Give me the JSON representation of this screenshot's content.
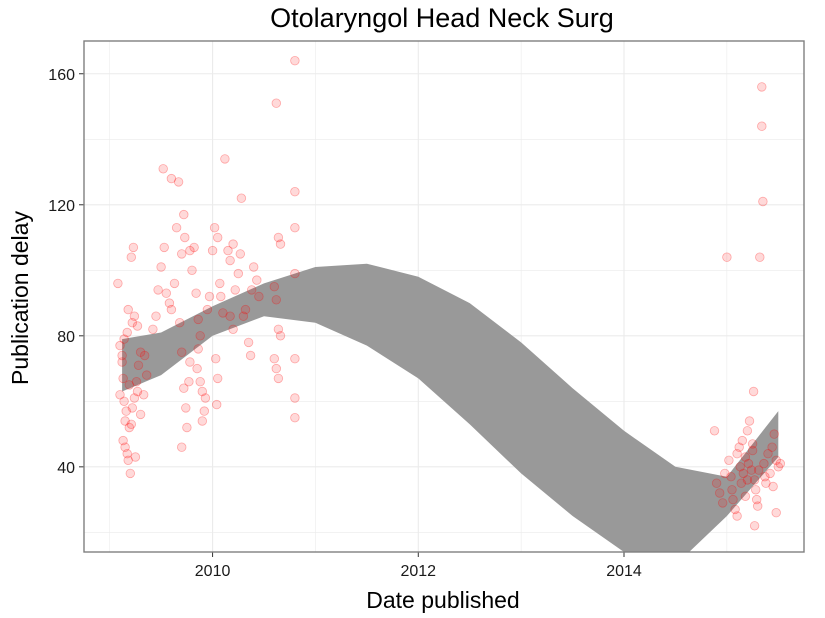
{
  "chart_data": {
    "type": "scatter",
    "title": "Otolaryngol Head Neck Surg",
    "xlabel": "Date published",
    "ylabel": "Publication delay",
    "x_ticks": [
      "2010",
      "2012",
      "2014"
    ],
    "y_ticks": [
      "40",
      "80",
      "120",
      "160"
    ],
    "xlim": [
      2008.75,
      2015.75
    ],
    "ylim": [
      14,
      170
    ],
    "grid": true,
    "colors": {
      "points": "#ff0000",
      "band": "#999999",
      "panel_border": "#7f7f7f",
      "grid": "#ebebeb"
    },
    "points": [
      [
        2009.08,
        96
      ],
      [
        2009.1,
        77
      ],
      [
        2009.12,
        72
      ],
      [
        2009.13,
        67
      ],
      [
        2009.1,
        62
      ],
      [
        2009.14,
        60
      ],
      [
        2009.16,
        57
      ],
      [
        2009.15,
        54
      ],
      [
        2009.13,
        48
      ],
      [
        2009.15,
        46
      ],
      [
        2009.17,
        44
      ],
      [
        2009.18,
        42
      ],
      [
        2009.2,
        38
      ],
      [
        2009.19,
        52
      ],
      [
        2009.21,
        53
      ],
      [
        2009.22,
        58
      ],
      [
        2009.24,
        61
      ],
      [
        2009.12,
        74
      ],
      [
        2009.14,
        79
      ],
      [
        2009.17,
        81
      ],
      [
        2009.18,
        88
      ],
      [
        2009.22,
        84
      ],
      [
        2009.24,
        86
      ],
      [
        2009.27,
        83
      ],
      [
        2009.21,
        104
      ],
      [
        2009.23,
        107
      ],
      [
        2009.19,
        65
      ],
      [
        2009.26,
        66
      ],
      [
        2009.28,
        71
      ],
      [
        2009.3,
        75
      ],
      [
        2009.33,
        62
      ],
      [
        2009.36,
        68
      ],
      [
        2009.25,
        43
      ],
      [
        2009.27,
        63
      ],
      [
        2009.3,
        56
      ],
      [
        2009.34,
        74
      ],
      [
        2009.42,
        82
      ],
      [
        2009.45,
        86
      ],
      [
        2009.47,
        94
      ],
      [
        2009.5,
        101
      ],
      [
        2009.53,
        107
      ],
      [
        2009.55,
        93
      ],
      [
        2009.58,
        90
      ],
      [
        2009.52,
        131
      ],
      [
        2009.6,
        88
      ],
      [
        2009.63,
        96
      ],
      [
        2009.65,
        113
      ],
      [
        2009.67,
        127
      ],
      [
        2009.7,
        105
      ],
      [
        2009.72,
        117
      ],
      [
        2009.73,
        110
      ],
      [
        2009.68,
        84
      ],
      [
        2009.7,
        75
      ],
      [
        2009.72,
        64
      ],
      [
        2009.74,
        58
      ],
      [
        2009.75,
        52
      ],
      [
        2009.7,
        46
      ],
      [
        2009.77,
        66
      ],
      [
        2009.78,
        72
      ],
      [
        2009.8,
        100
      ],
      [
        2009.82,
        107
      ],
      [
        2009.84,
        93
      ],
      [
        2009.86,
        85
      ],
      [
        2009.88,
        80
      ],
      [
        2009.9,
        63
      ],
      [
        2009.92,
        57
      ],
      [
        2009.93,
        61
      ],
      [
        2009.9,
        54
      ],
      [
        2009.95,
        88
      ],
      [
        2009.97,
        92
      ],
      [
        2009.85,
        70
      ],
      [
        2009.86,
        76
      ],
      [
        2009.88,
        66
      ],
      [
        2009.6,
        128
      ],
      [
        2009.78,
        106
      ],
      [
        2010.0,
        106
      ],
      [
        2010.02,
        113
      ],
      [
        2010.05,
        110
      ],
      [
        2010.07,
        96
      ],
      [
        2010.08,
        92
      ],
      [
        2010.1,
        87
      ],
      [
        2010.03,
        73
      ],
      [
        2010.05,
        67
      ],
      [
        2010.04,
        59
      ],
      [
        2010.12,
        134
      ],
      [
        2010.15,
        106
      ],
      [
        2010.17,
        103
      ],
      [
        2010.2,
        108
      ],
      [
        2010.22,
        94
      ],
      [
        2010.25,
        99
      ],
      [
        2010.27,
        105
      ],
      [
        2010.28,
        122
      ],
      [
        2010.3,
        86
      ],
      [
        2010.32,
        88
      ],
      [
        2010.35,
        78
      ],
      [
        2010.37,
        74
      ],
      [
        2010.38,
        94
      ],
      [
        2010.4,
        101
      ],
      [
        2010.43,
        97
      ],
      [
        2010.45,
        92
      ],
      [
        2010.17,
        86
      ],
      [
        2010.2,
        82
      ],
      [
        2010.62,
        151
      ],
      [
        2010.64,
        110
      ],
      [
        2010.66,
        108
      ],
      [
        2010.6,
        95
      ],
      [
        2010.62,
        91
      ],
      [
        2010.64,
        82
      ],
      [
        2010.66,
        80
      ],
      [
        2010.6,
        73
      ],
      [
        2010.62,
        70
      ],
      [
        2010.64,
        67
      ],
      [
        2010.8,
        164
      ],
      [
        2010.8,
        124
      ],
      [
        2010.8,
        113
      ],
      [
        2010.8,
        99
      ],
      [
        2010.8,
        73
      ],
      [
        2010.8,
        61
      ],
      [
        2010.8,
        55
      ],
      [
        2014.88,
        51
      ],
      [
        2014.9,
        35
      ],
      [
        2014.93,
        32
      ],
      [
        2014.96,
        29
      ],
      [
        2014.98,
        38
      ],
      [
        2015.0,
        104
      ],
      [
        2015.02,
        42
      ],
      [
        2015.04,
        37
      ],
      [
        2015.05,
        33
      ],
      [
        2015.06,
        30
      ],
      [
        2015.08,
        27
      ],
      [
        2015.1,
        25
      ],
      [
        2015.1,
        44
      ],
      [
        2015.12,
        46
      ],
      [
        2015.13,
        40
      ],
      [
        2015.15,
        48
      ],
      [
        2015.16,
        38
      ],
      [
        2015.18,
        43
      ],
      [
        2015.2,
        36
      ],
      [
        2015.21,
        41
      ],
      [
        2015.22,
        54
      ],
      [
        2015.24,
        39
      ],
      [
        2015.25,
        45
      ],
      [
        2015.26,
        63
      ],
      [
        2015.27,
        36
      ],
      [
        2015.28,
        33
      ],
      [
        2015.29,
        30
      ],
      [
        2015.3,
        28
      ],
      [
        2015.31,
        39
      ],
      [
        2015.32,
        104
      ],
      [
        2015.34,
        156
      ],
      [
        2015.34,
        144
      ],
      [
        2015.35,
        121
      ],
      [
        2015.36,
        41
      ],
      [
        2015.37,
        37
      ],
      [
        2015.38,
        35
      ],
      [
        2015.4,
        44
      ],
      [
        2015.42,
        38
      ],
      [
        2015.44,
        46
      ],
      [
        2015.46,
        50
      ],
      [
        2015.48,
        42
      ],
      [
        2015.5,
        40
      ],
      [
        2015.52,
        41
      ],
      [
        2015.48,
        26
      ],
      [
        2015.45,
        34
      ],
      [
        2015.27,
        22
      ],
      [
        2015.18,
        31
      ],
      [
        2015.14,
        35
      ],
      [
        2015.2,
        51
      ],
      [
        2015.25,
        47
      ]
    ],
    "band": {
      "x": [
        2009.12,
        2009.5,
        2010.0,
        2010.5,
        2011.0,
        2011.5,
        2012.0,
        2012.5,
        2013.0,
        2013.5,
        2014.0,
        2014.5,
        2015.0,
        2015.5
      ],
      "lower": [
        63,
        68,
        80,
        86,
        84,
        77,
        67,
        53,
        38,
        25,
        14,
        10,
        25,
        43
      ],
      "upper": [
        79,
        81,
        89,
        96,
        101,
        102,
        98,
        90,
        78,
        64,
        51,
        40,
        37,
        57
      ]
    }
  }
}
